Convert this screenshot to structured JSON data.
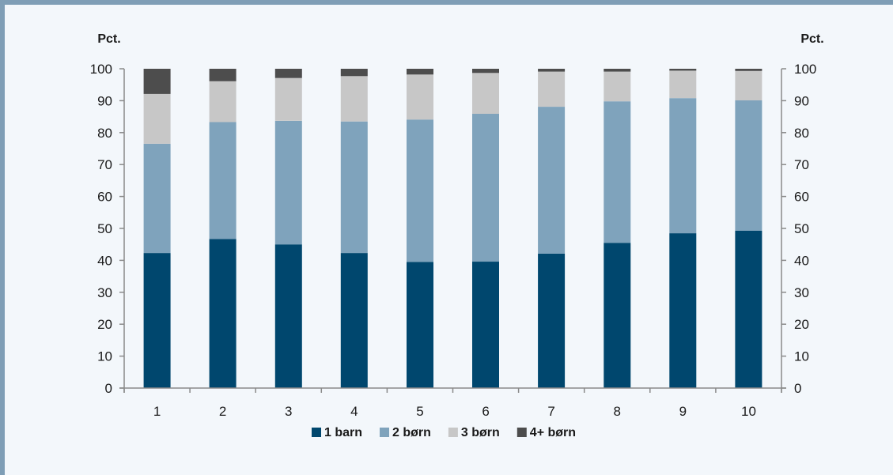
{
  "colors": {
    "background": "#f3f7fb",
    "frame": "#7f9eb6",
    "axis": "#8a8a8a"
  },
  "chart_data": {
    "type": "bar",
    "stacked": true,
    "y_unit_left": "Pct.",
    "y_unit_right": "Pct.",
    "categories": [
      "1",
      "2",
      "3",
      "4",
      "5",
      "6",
      "7",
      "8",
      "9",
      "10"
    ],
    "ylim": [
      0,
      100
    ],
    "yticks": [
      0,
      10,
      20,
      30,
      40,
      50,
      60,
      70,
      80,
      90,
      100
    ],
    "grid": false,
    "legend_position": "bottom",
    "series": [
      {
        "name": "1 barn",
        "color": "#00476e",
        "values": [
          42.3,
          46.7,
          45.0,
          42.3,
          39.5,
          39.6,
          42.1,
          45.5,
          48.5,
          49.3
        ]
      },
      {
        "name": "2 børn",
        "color": "#7fa3bc",
        "values": [
          34.2,
          36.6,
          38.7,
          41.2,
          44.6,
          46.3,
          46.0,
          44.3,
          42.3,
          40.8
        ]
      },
      {
        "name": "3 børn",
        "color": "#c7c7c7",
        "values": [
          15.6,
          12.8,
          13.4,
          14.2,
          14.1,
          12.8,
          11.0,
          9.3,
          8.6,
          9.2
        ]
      },
      {
        "name": "4+ børn",
        "color": "#4d4d4d",
        "values": [
          7.9,
          3.9,
          2.9,
          2.3,
          1.8,
          1.3,
          0.9,
          0.9,
          0.6,
          0.7
        ]
      }
    ]
  }
}
